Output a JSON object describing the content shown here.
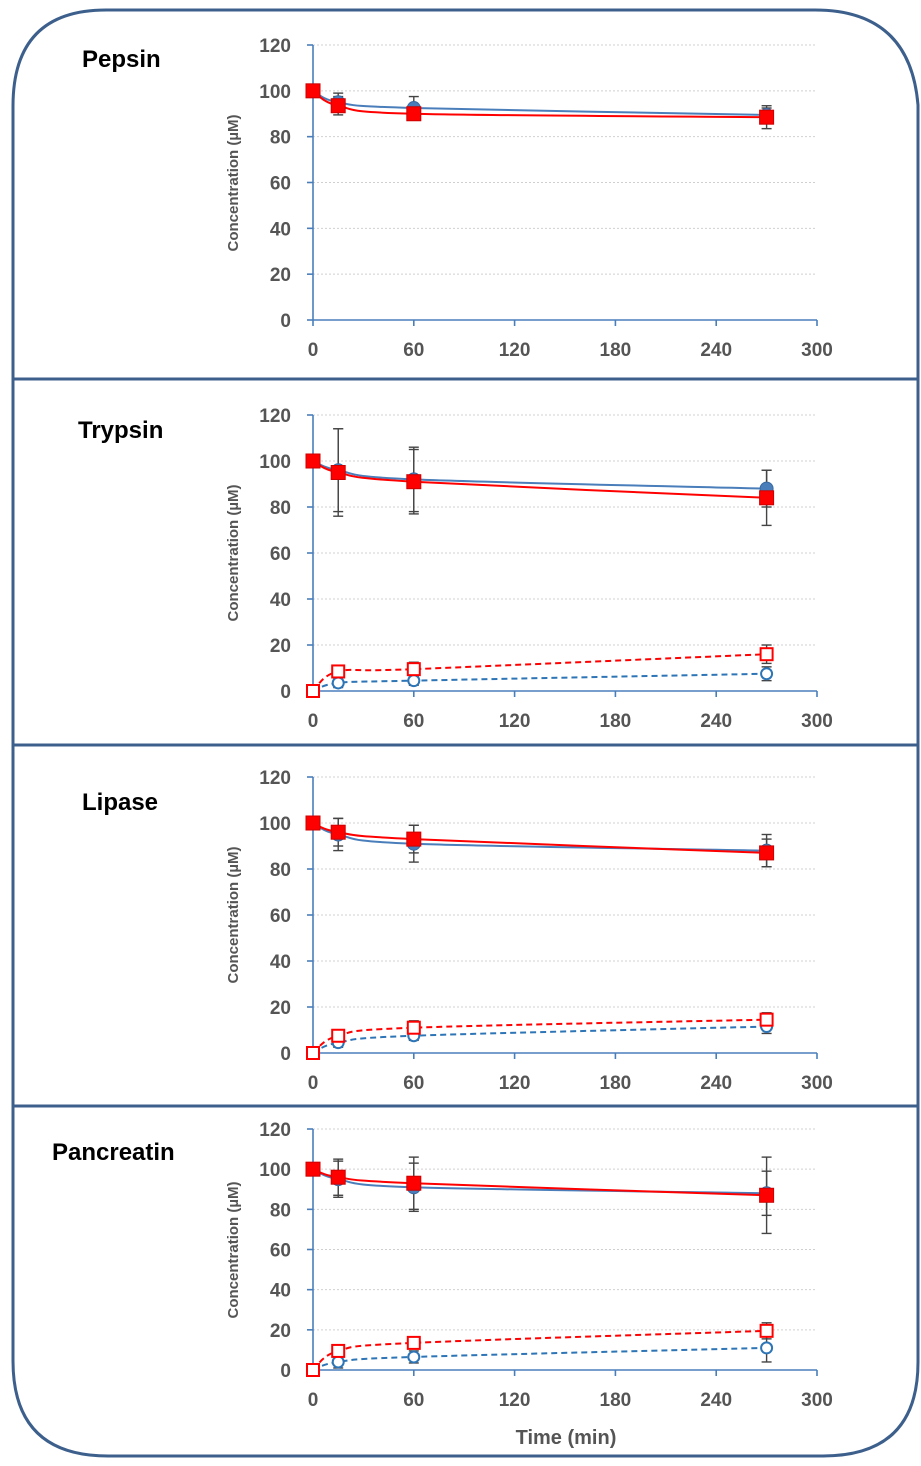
{
  "chart_data": [
    {
      "type": "line",
      "title": "Pepsin",
      "ylabel": "Concentration (µM)",
      "xlabel": "",
      "xlim": [
        0,
        300
      ],
      "ylim": [
        0,
        120
      ],
      "xticks": [
        0,
        60,
        120,
        180,
        240,
        300
      ],
      "yticks": [
        0,
        20,
        40,
        60,
        80,
        100,
        120
      ],
      "grid": true,
      "series": [
        {
          "style": "blue-filled-circle",
          "color": "#4a7ebb",
          "x": [
            0,
            15,
            60,
            270
          ],
          "values": [
            100,
            95,
            92.5,
            89.5
          ],
          "errors": [
            0,
            4,
            5,
            3
          ]
        },
        {
          "style": "red-filled-square",
          "color": "#ff0000",
          "x": [
            0,
            15,
            60,
            270
          ],
          "values": [
            100,
            93.5,
            90,
            88.5
          ],
          "errors": [
            0,
            4,
            2,
            5
          ]
        }
      ]
    },
    {
      "type": "line",
      "title": "Trypsin",
      "ylabel": "Concentration (µM)",
      "xlabel": "",
      "xlim": [
        0,
        300
      ],
      "ylim": [
        0,
        120
      ],
      "xticks": [
        0,
        60,
        120,
        180,
        240,
        300
      ],
      "yticks": [
        0,
        20,
        40,
        60,
        80,
        100,
        120
      ],
      "grid": true,
      "series": [
        {
          "style": "blue-filled-circle",
          "color": "#4a7ebb",
          "x": [
            0,
            15,
            60,
            270
          ],
          "values": [
            100,
            96,
            92,
            88
          ],
          "errors": [
            0,
            18,
            14,
            8
          ]
        },
        {
          "style": "red-filled-square",
          "color": "#ff0000",
          "x": [
            0,
            15,
            60,
            270
          ],
          "values": [
            100,
            95,
            91,
            84
          ],
          "errors": [
            0,
            19,
            14,
            12
          ]
        },
        {
          "style": "blue-open-circle-dashed",
          "color": "#2e75b6",
          "x": [
            0,
            15,
            60,
            270
          ],
          "values": [
            0,
            3.5,
            4.5,
            7.5
          ],
          "errors": [
            0,
            2,
            2,
            3
          ]
        },
        {
          "style": "red-open-square-dashed",
          "color": "#ff0000",
          "x": [
            0,
            15,
            60,
            270
          ],
          "values": [
            0,
            8.5,
            9.5,
            16
          ],
          "errors": [
            0,
            2,
            3,
            4
          ]
        }
      ]
    },
    {
      "type": "line",
      "title": "Lipase",
      "ylabel": "Concentration (µM)",
      "xlabel": "",
      "xlim": [
        0,
        300
      ],
      "ylim": [
        0,
        120
      ],
      "xticks": [
        0,
        60,
        120,
        180,
        240,
        300
      ],
      "yticks": [
        0,
        20,
        40,
        60,
        80,
        100,
        120
      ],
      "grid": true,
      "series": [
        {
          "style": "blue-filled-circle",
          "color": "#4a7ebb",
          "x": [
            0,
            15,
            60,
            270
          ],
          "values": [
            100,
            95,
            91,
            88
          ],
          "errors": [
            0,
            7,
            8,
            7
          ]
        },
        {
          "style": "red-filled-square",
          "color": "#ff0000",
          "x": [
            0,
            15,
            60,
            270
          ],
          "values": [
            100,
            96,
            93,
            87
          ],
          "errors": [
            0,
            6,
            6,
            6
          ]
        },
        {
          "style": "blue-open-circle-dashed",
          "color": "#2e75b6",
          "x": [
            0,
            15,
            60,
            270
          ],
          "values": [
            0,
            4.5,
            7.5,
            11.5
          ],
          "errors": [
            0,
            2,
            2,
            3
          ]
        },
        {
          "style": "red-open-square-dashed",
          "color": "#ff0000",
          "x": [
            0,
            15,
            60,
            270
          ],
          "values": [
            0,
            7.5,
            11,
            14.5
          ],
          "errors": [
            0,
            2,
            3,
            3
          ]
        }
      ]
    },
    {
      "type": "line",
      "title": "Pancreatin",
      "ylabel": "Concentration (µM)",
      "xlabel": "Time (min)",
      "xlim": [
        0,
        300
      ],
      "ylim": [
        0,
        120
      ],
      "xticks": [
        0,
        60,
        120,
        180,
        240,
        300
      ],
      "yticks": [
        0,
        20,
        40,
        60,
        80,
        100,
        120
      ],
      "grid": true,
      "series": [
        {
          "style": "blue-filled-circle",
          "color": "#4a7ebb",
          "x": [
            0,
            15,
            60,
            270
          ],
          "values": [
            100,
            95,
            91,
            88
          ],
          "errors": [
            0,
            9,
            12,
            11
          ]
        },
        {
          "style": "red-filled-square",
          "color": "#ff0000",
          "x": [
            0,
            15,
            60,
            270
          ],
          "values": [
            100,
            96,
            93,
            87
          ],
          "errors": [
            0,
            9,
            13,
            19
          ]
        },
        {
          "style": "blue-open-circle-dashed",
          "color": "#2e75b6",
          "x": [
            0,
            15,
            60,
            270
          ],
          "values": [
            0,
            4,
            6.5,
            11
          ],
          "errors": [
            0,
            3,
            3,
            7
          ]
        },
        {
          "style": "red-open-square-dashed",
          "color": "#ff0000",
          "x": [
            0,
            15,
            60,
            270
          ],
          "values": [
            0,
            9.5,
            13.5,
            19.5
          ],
          "errors": [
            0,
            3,
            3,
            4
          ]
        }
      ]
    }
  ]
}
